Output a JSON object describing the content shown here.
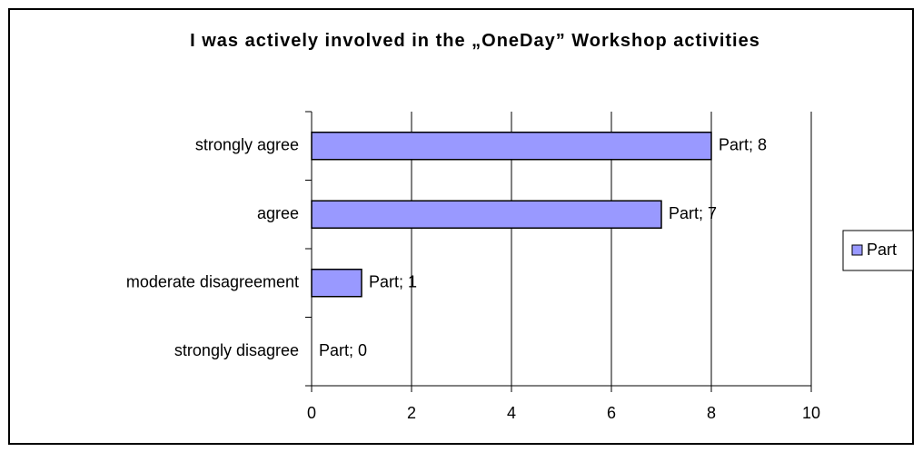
{
  "chart_data": {
    "type": "bar",
    "orientation": "horizontal",
    "title": "I was actively involved in the „OneDay” Workshop activities",
    "categories": [
      "strongly agree",
      "agree",
      "moderate disagreement",
      "strongly disagree"
    ],
    "series": [
      {
        "name": "Part",
        "color": "#9999ff",
        "values": [
          8,
          7,
          1,
          0
        ],
        "value_labels": [
          "Part; 8",
          "Part; 7",
          "Part; 1",
          "Part; 0"
        ]
      }
    ],
    "xlim": [
      0,
      10
    ],
    "xticks": [
      0,
      2,
      4,
      6,
      8,
      10
    ],
    "grid": true,
    "legend": "right"
  }
}
